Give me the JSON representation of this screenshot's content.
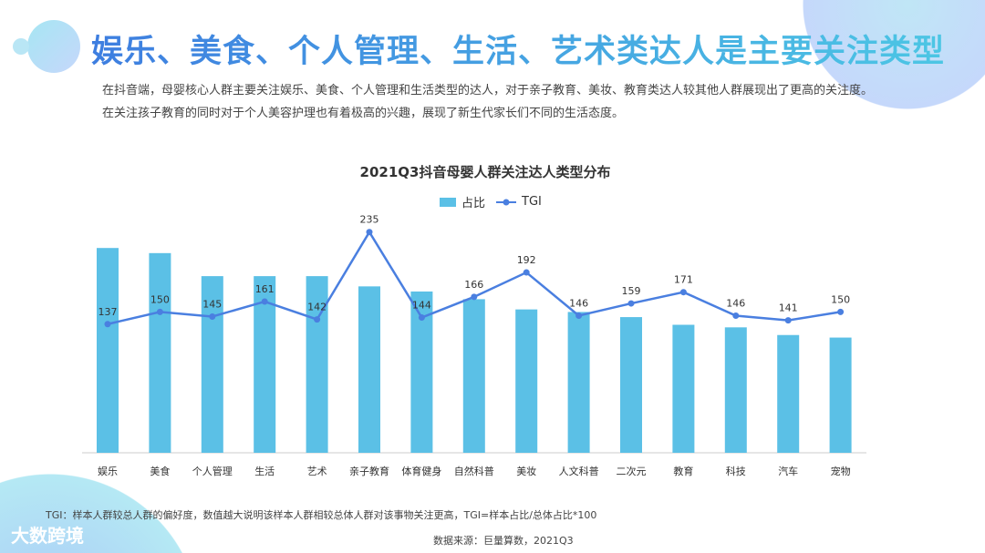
{
  "header": {
    "title": "娱乐、美食、个人管理、生活、艺术类达人是主要关注类型",
    "description": "在抖音端，母婴核心人群主要关注娱乐、美食、个人管理和生活类型的达人，对于亲子教育、美妆、教育类达人较其他人群展现出了更高的关注度。在关注孩子教育的同时对于个人美容护理也有着极高的兴趣，展现了新生代家长们不同的生活态度。"
  },
  "chart_data": {
    "type": "bar+line",
    "title": "2021Q3抖音母婴人群关注达人类型分布",
    "categories": [
      "娱乐",
      "美食",
      "个人管理",
      "生活",
      "艺术",
      "亲子教育",
      "体育健身",
      "自然科普",
      "美妆",
      "人文科普",
      "二次元",
      "教育",
      "科技",
      "汽车",
      "宠物"
    ],
    "series": [
      {
        "name": "占比",
        "type": "bar",
        "values": [
          80,
          78,
          69,
          69,
          69,
          65,
          63,
          60,
          56,
          55,
          53,
          50,
          49,
          46,
          45
        ],
        "color": "#5bc0e6"
      },
      {
        "name": "TGI",
        "type": "line",
        "values": [
          137,
          150,
          145,
          161,
          142,
          235,
          144,
          166,
          192,
          146,
          159,
          171,
          146,
          141,
          150
        ],
        "color": "#4a7fe0"
      }
    ],
    "bar_scale": "relative (no axis shown)",
    "legend": "top",
    "grid": false
  },
  "footer": {
    "note": "TGI：样本人群较总人群的偏好度，数值越大说明该样本人群相较总体人群对该事物关注更高，TGI=样本占比/总体占比*100",
    "source": "数据来源：巨量算数，2021Q3",
    "logo": "大数跨境"
  }
}
